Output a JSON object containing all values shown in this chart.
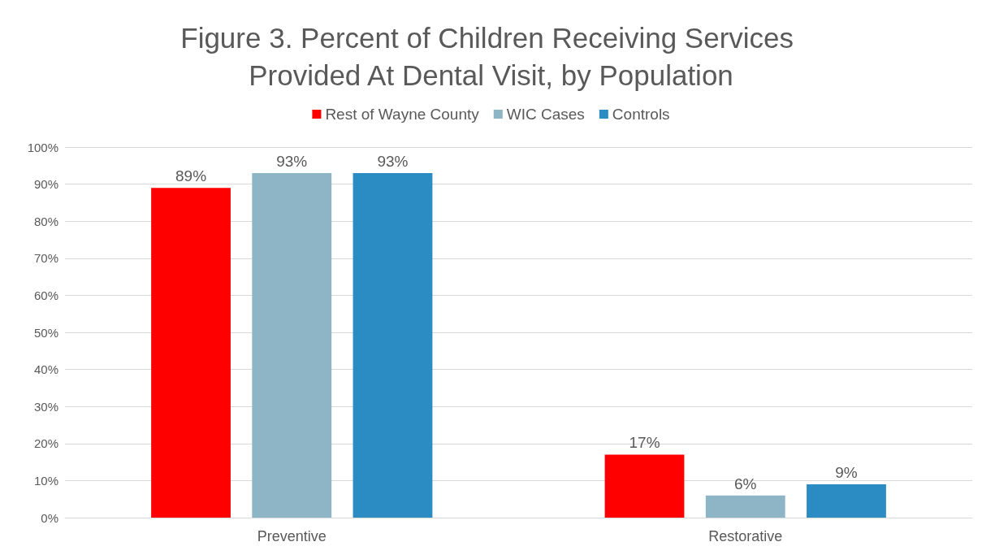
{
  "chart_data": {
    "type": "bar",
    "title": "Figure 3. Percent of Children Receiving Services Provided At Dental Visit, by Population",
    "categories": [
      "Preventive",
      "Restorative"
    ],
    "series": [
      {
        "name": "Rest of Wayne County",
        "color": "#ff0000",
        "values": [
          89,
          17
        ],
        "value_labels": [
          "89%",
          "17%"
        ]
      },
      {
        "name": "WIC Cases",
        "color": "#8db5c5",
        "values": [
          93,
          6
        ],
        "value_labels": [
          "93%",
          "6%"
        ]
      },
      {
        "name": "Controls",
        "color": "#2b8cc4",
        "values": [
          93,
          9
        ],
        "value_labels": [
          "93%",
          "9%"
        ]
      }
    ],
    "ylim": [
      0,
      100
    ],
    "yticks": [
      {
        "value": 0,
        "label": "0%"
      },
      {
        "value": 10,
        "label": "10%"
      },
      {
        "value": 20,
        "label": "20%"
      },
      {
        "value": 30,
        "label": "30%"
      },
      {
        "value": 40,
        "label": "40%"
      },
      {
        "value": 50,
        "label": "50%"
      },
      {
        "value": 60,
        "label": "60%"
      },
      {
        "value": 70,
        "label": "70%"
      },
      {
        "value": 80,
        "label": "80%"
      },
      {
        "value": 90,
        "label": "90%"
      },
      {
        "value": 100,
        "label": "100%"
      }
    ],
    "grid": "y",
    "legend": "top"
  }
}
